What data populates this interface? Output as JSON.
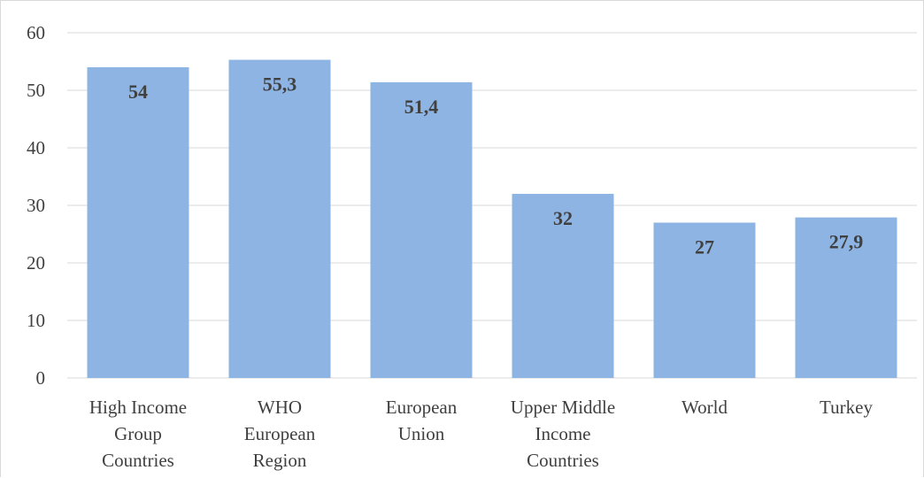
{
  "chart_data": {
    "type": "bar",
    "title": "",
    "xlabel": "",
    "ylabel": "",
    "categories": [
      [
        "High Income",
        "Group",
        "Countries"
      ],
      [
        "WHO",
        "European",
        "Region"
      ],
      [
        "European",
        "Union"
      ],
      [
        "Upper Middle",
        "Income",
        "Countries"
      ],
      [
        "World"
      ],
      [
        "Turkey"
      ]
    ],
    "values": [
      54,
      55.3,
      51.4,
      32,
      27,
      27.9
    ],
    "data_labels": [
      "54",
      "55,3",
      "51,4",
      "32",
      "27",
      "27,9"
    ],
    "ylim": [
      0,
      60
    ],
    "yticks": [
      0,
      10,
      20,
      30,
      40,
      50,
      60
    ],
    "grid": true,
    "legend": "none",
    "colors": {
      "bar": "#8db4e2",
      "grid": "#d9d9d9",
      "text": "#404040"
    }
  }
}
